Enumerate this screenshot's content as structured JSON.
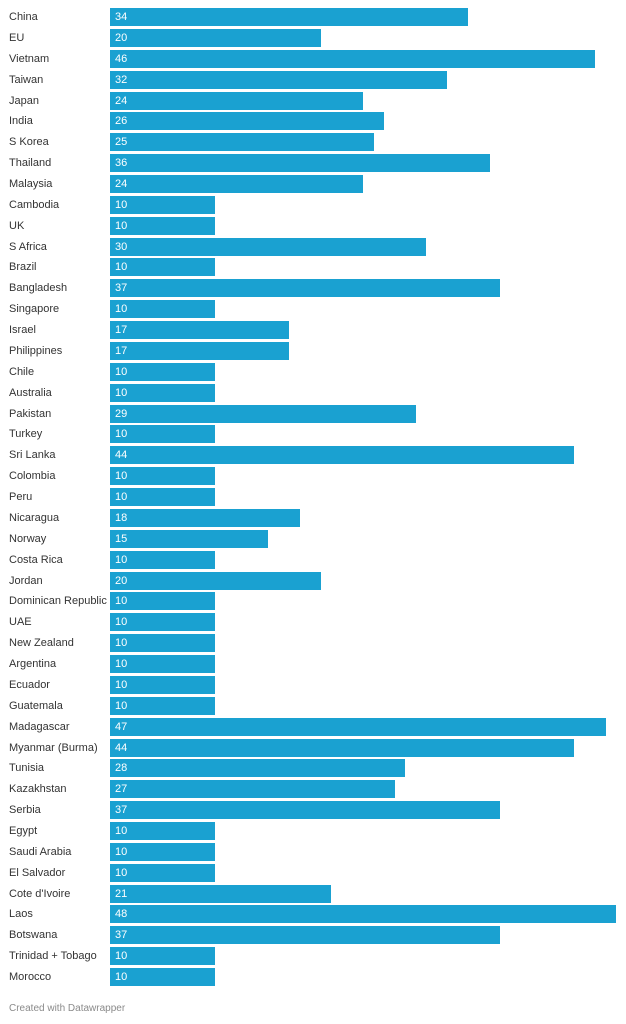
{
  "footer": "Created with Datawrapper",
  "colors": {
    "bar": "#1aa1d1",
    "label": "#333333",
    "value_text": "#ffffff"
  },
  "chart_data": {
    "type": "bar",
    "orientation": "horizontal",
    "title": "",
    "xlabel": "",
    "ylabel": "",
    "xlim": [
      0,
      48
    ],
    "grid": false,
    "value_labels": "inside-bar",
    "categories": [
      "China",
      "EU",
      "Vietnam",
      "Taiwan",
      "Japan",
      "India",
      "S Korea",
      "Thailand",
      "Malaysia",
      "Cambodia",
      "UK",
      "S Africa",
      "Brazil",
      "Bangladesh",
      "Singapore",
      "Israel",
      "Philippines",
      "Chile",
      "Australia",
      "Pakistan",
      "Turkey",
      "Sri Lanka",
      "Colombia",
      "Peru",
      "Nicaragua",
      "Norway",
      "Costa Rica",
      "Jordan",
      "Dominican Republic",
      "UAE",
      "New Zealand",
      "Argentina",
      "Ecuador",
      "Guatemala",
      "Madagascar",
      "Myanmar (Burma)",
      "Tunisia",
      "Kazakhstan",
      "Serbia",
      "Egypt",
      "Saudi Arabia",
      "El Salvador",
      "Cote d'Ivoire",
      "Laos",
      "Botswana",
      "Trinidad + Tobago",
      "Morocco"
    ],
    "values": [
      34,
      20,
      46,
      32,
      24,
      26,
      25,
      36,
      24,
      10,
      10,
      30,
      10,
      37,
      10,
      17,
      17,
      10,
      10,
      29,
      10,
      44,
      10,
      10,
      18,
      15,
      10,
      20,
      10,
      10,
      10,
      10,
      10,
      10,
      47,
      44,
      28,
      27,
      37,
      10,
      10,
      10,
      21,
      48,
      37,
      10,
      10
    ]
  }
}
